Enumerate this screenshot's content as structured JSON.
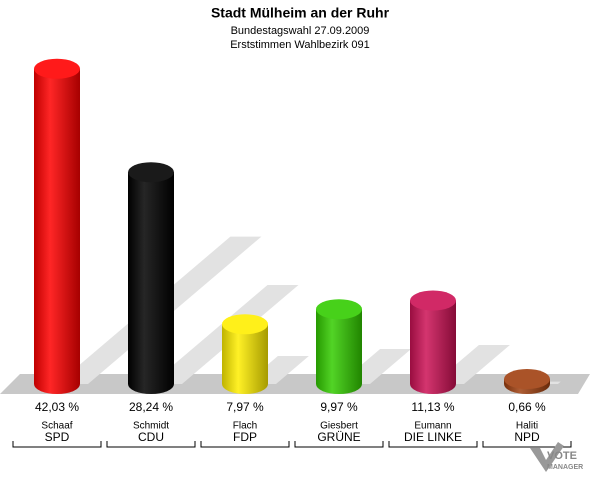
{
  "chart_data": {
    "type": "cylinder-bar",
    "title": "Stadt Mülheim an der Ruhr",
    "subtitle": "Bundestagswahl 27.09.2009",
    "subtitle2": "Erststimmen Wahlbezirk 091",
    "candidates": [
      "Schaaf",
      "Schmidt",
      "Flach",
      "Giesbert",
      "Eumann",
      "Haliti"
    ],
    "categories": [
      "SPD",
      "CDU",
      "FDP",
      "GRÜNE",
      "DIE LINKE",
      "NPD"
    ],
    "values": [
      42.03,
      28.24,
      7.97,
      9.97,
      11.13,
      0.66
    ],
    "value_labels": [
      "42,03 %",
      "28,24 %",
      "7,97 %",
      "9,97 %",
      "11,13 %",
      "0,66 %"
    ],
    "colors": [
      "#ff0000",
      "#000000",
      "#ffee00",
      "#33cc00",
      "#cc1155",
      "#a04010"
    ]
  },
  "logo": {
    "line1": "VOTE",
    "line2": "MANAGER"
  }
}
